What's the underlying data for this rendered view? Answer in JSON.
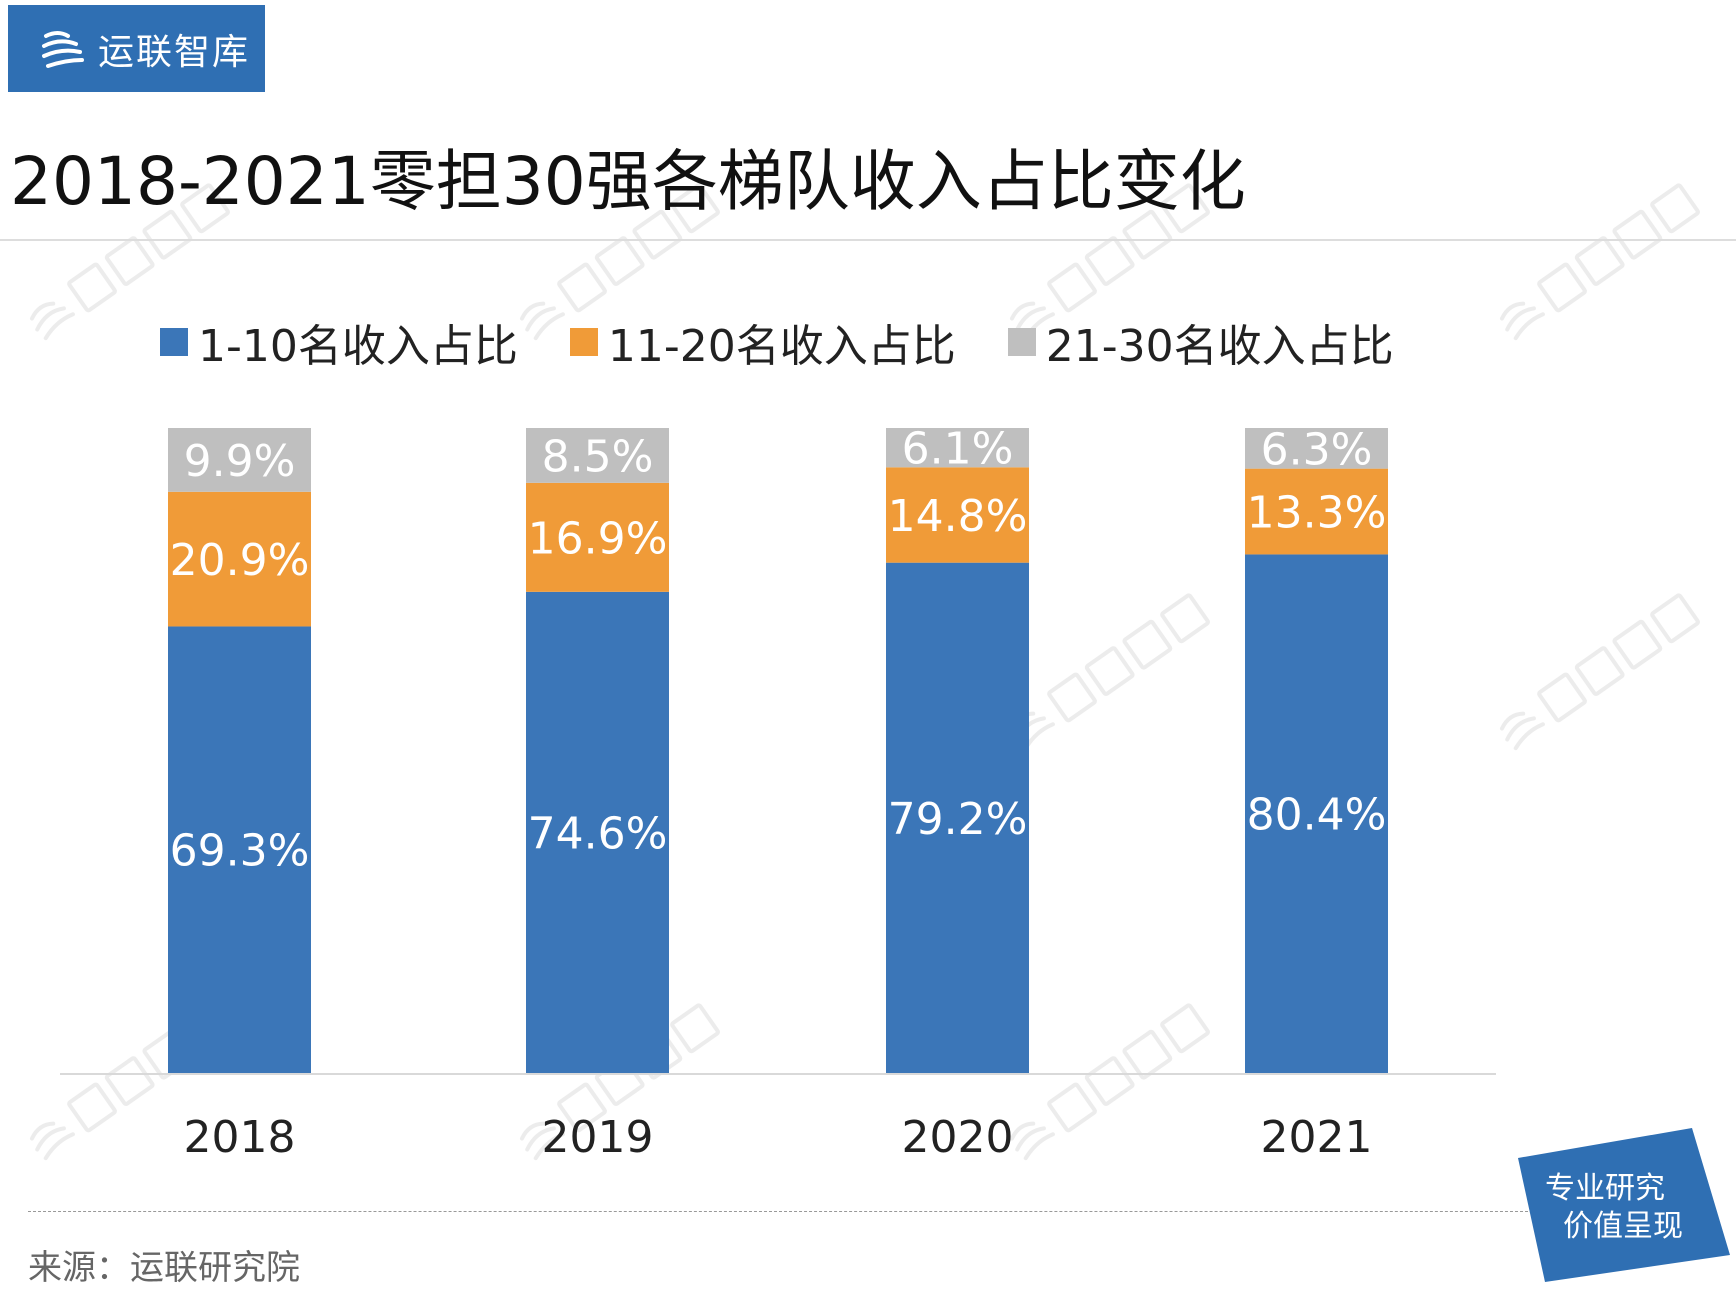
{
  "logo": {
    "text": "运联智库"
  },
  "title": "2018-2021零担30强各梯队收入占比变化",
  "watermark": "运联智库",
  "source": "来源：运联研究院",
  "badge": {
    "line1": "专业研究",
    "line2": "价值呈现"
  },
  "chart_data": {
    "type": "stacked-bar",
    "title": "2018-2021零担30强各梯队收入占比变化",
    "categories": [
      "2018",
      "2019",
      "2020",
      "2021"
    ],
    "legend_position": "top",
    "grid": false,
    "ylim": [
      0,
      100
    ],
    "series": [
      {
        "name": "1-10名收入占比",
        "color": "#3b76b8",
        "values": [
          69.3,
          74.6,
          79.2,
          80.4
        ],
        "labels": [
          "69.3%",
          "74.6%",
          "79.2%",
          "80.4%"
        ]
      },
      {
        "name": "11-20名收入占比",
        "color": "#f09b38",
        "values": [
          20.9,
          16.9,
          14.8,
          13.3
        ],
        "labels": [
          "20.9%",
          "16.9%",
          "14.8%",
          "13.3%"
        ]
      },
      {
        "name": "21-30名收入占比",
        "color": "#bfbfbf",
        "values": [
          9.9,
          8.5,
          6.1,
          6.3
        ],
        "labels": [
          "9.9%",
          "8.5%",
          "6.1%",
          "6.3%"
        ]
      }
    ]
  }
}
